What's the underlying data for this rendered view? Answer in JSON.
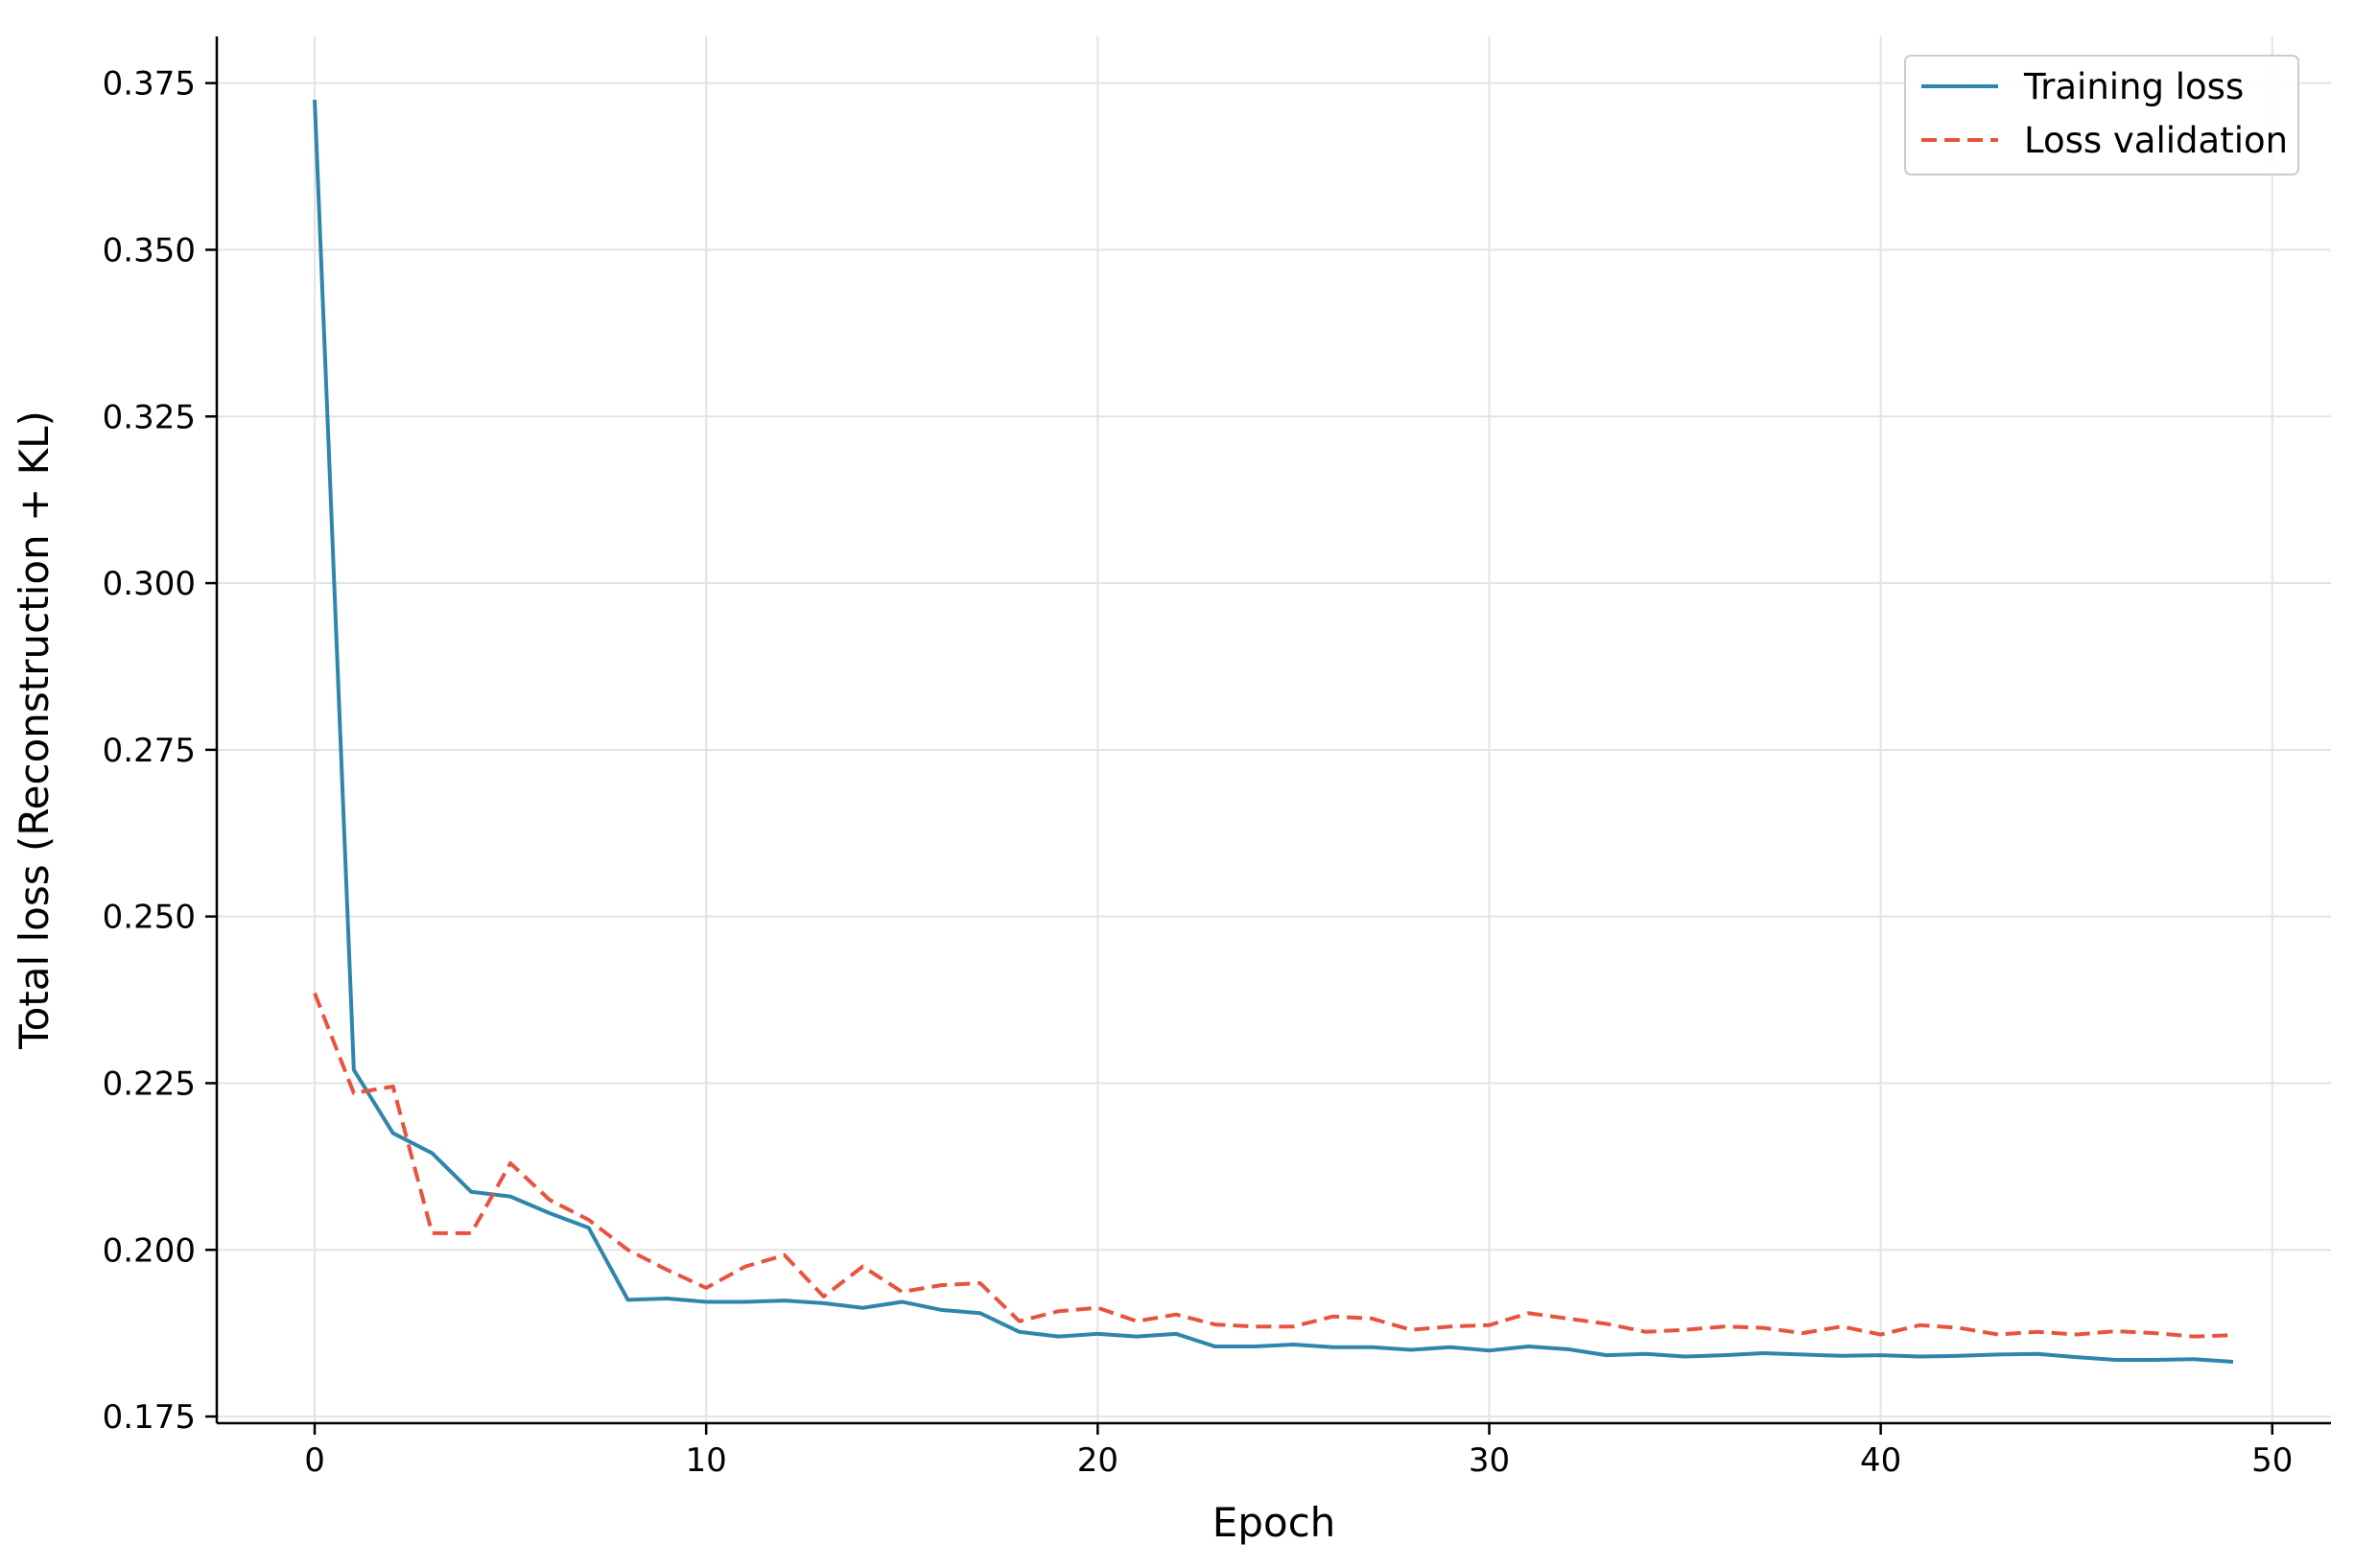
{
  "chart_data": {
    "type": "line",
    "title": "",
    "xlabel": "Epoch",
    "ylabel": "Total loss (Reconstruction + KL)",
    "xlim": [
      -2.5,
      51.5
    ],
    "ylim": [
      0.174,
      0.382
    ],
    "xticks": [
      0,
      10,
      20,
      30,
      40,
      50
    ],
    "xtick_labels": [
      "0",
      "10",
      "20",
      "30",
      "40",
      "50"
    ],
    "yticks": [
      0.175,
      0.2,
      0.225,
      0.25,
      0.275,
      0.3,
      0.325,
      0.35,
      0.375
    ],
    "ytick_labels": [
      "0.175",
      "0.200",
      "0.225",
      "0.250",
      "0.275",
      "0.300",
      "0.325",
      "0.350",
      "0.375"
    ],
    "grid": true,
    "legend_position": "top-right",
    "x": [
      0,
      1,
      2,
      3,
      4,
      5,
      6,
      7,
      8,
      9,
      10,
      11,
      12,
      13,
      14,
      15,
      16,
      17,
      18,
      19,
      20,
      21,
      22,
      23,
      24,
      25,
      26,
      27,
      28,
      29,
      30,
      31,
      32,
      33,
      34,
      35,
      36,
      37,
      38,
      39,
      40,
      41,
      42,
      43,
      44,
      45,
      46,
      47,
      48,
      49
    ],
    "series": [
      {
        "name": "Training loss",
        "color": "#2e86ab",
        "style": "solid",
        "values": [
          0.3725,
          0.227,
          0.2175,
          0.2145,
          0.2087,
          0.208,
          0.2055,
          0.2033,
          0.1925,
          0.1927,
          0.1922,
          0.1922,
          0.1924,
          0.192,
          0.1913,
          0.1922,
          0.191,
          0.1905,
          0.1877,
          0.187,
          0.1874,
          0.187,
          0.1874,
          0.1855,
          0.1855,
          0.1858,
          0.1854,
          0.1854,
          0.185,
          0.1854,
          0.1849,
          0.1855,
          0.1851,
          0.1842,
          0.1844,
          0.184,
          0.1842,
          0.1845,
          0.1843,
          0.1841,
          0.1842,
          0.184,
          0.1841,
          0.1843,
          0.1844,
          0.1839,
          0.1835,
          0.1835,
          0.1836,
          0.1832
        ]
      },
      {
        "name": "Loss validation",
        "color": "#e8533f",
        "style": "dashed",
        "values": [
          0.2385,
          0.2235,
          0.2245,
          0.2025,
          0.2025,
          0.213,
          0.2075,
          0.2045,
          0.2,
          0.197,
          0.1943,
          0.1975,
          0.1992,
          0.193,
          0.1975,
          0.1937,
          0.1947,
          0.195,
          0.1893,
          0.1908,
          0.1913,
          0.1893,
          0.1903,
          0.1888,
          0.1885,
          0.1885,
          0.19,
          0.1897,
          0.188,
          0.1885,
          0.1887,
          0.1905,
          0.1897,
          0.1889,
          0.1877,
          0.188,
          0.1885,
          0.1883,
          0.1875,
          0.1885,
          0.1873,
          0.1887,
          0.1883,
          0.1873,
          0.1877,
          0.1873,
          0.1878,
          0.1875,
          0.187,
          0.1872
        ]
      }
    ]
  }
}
